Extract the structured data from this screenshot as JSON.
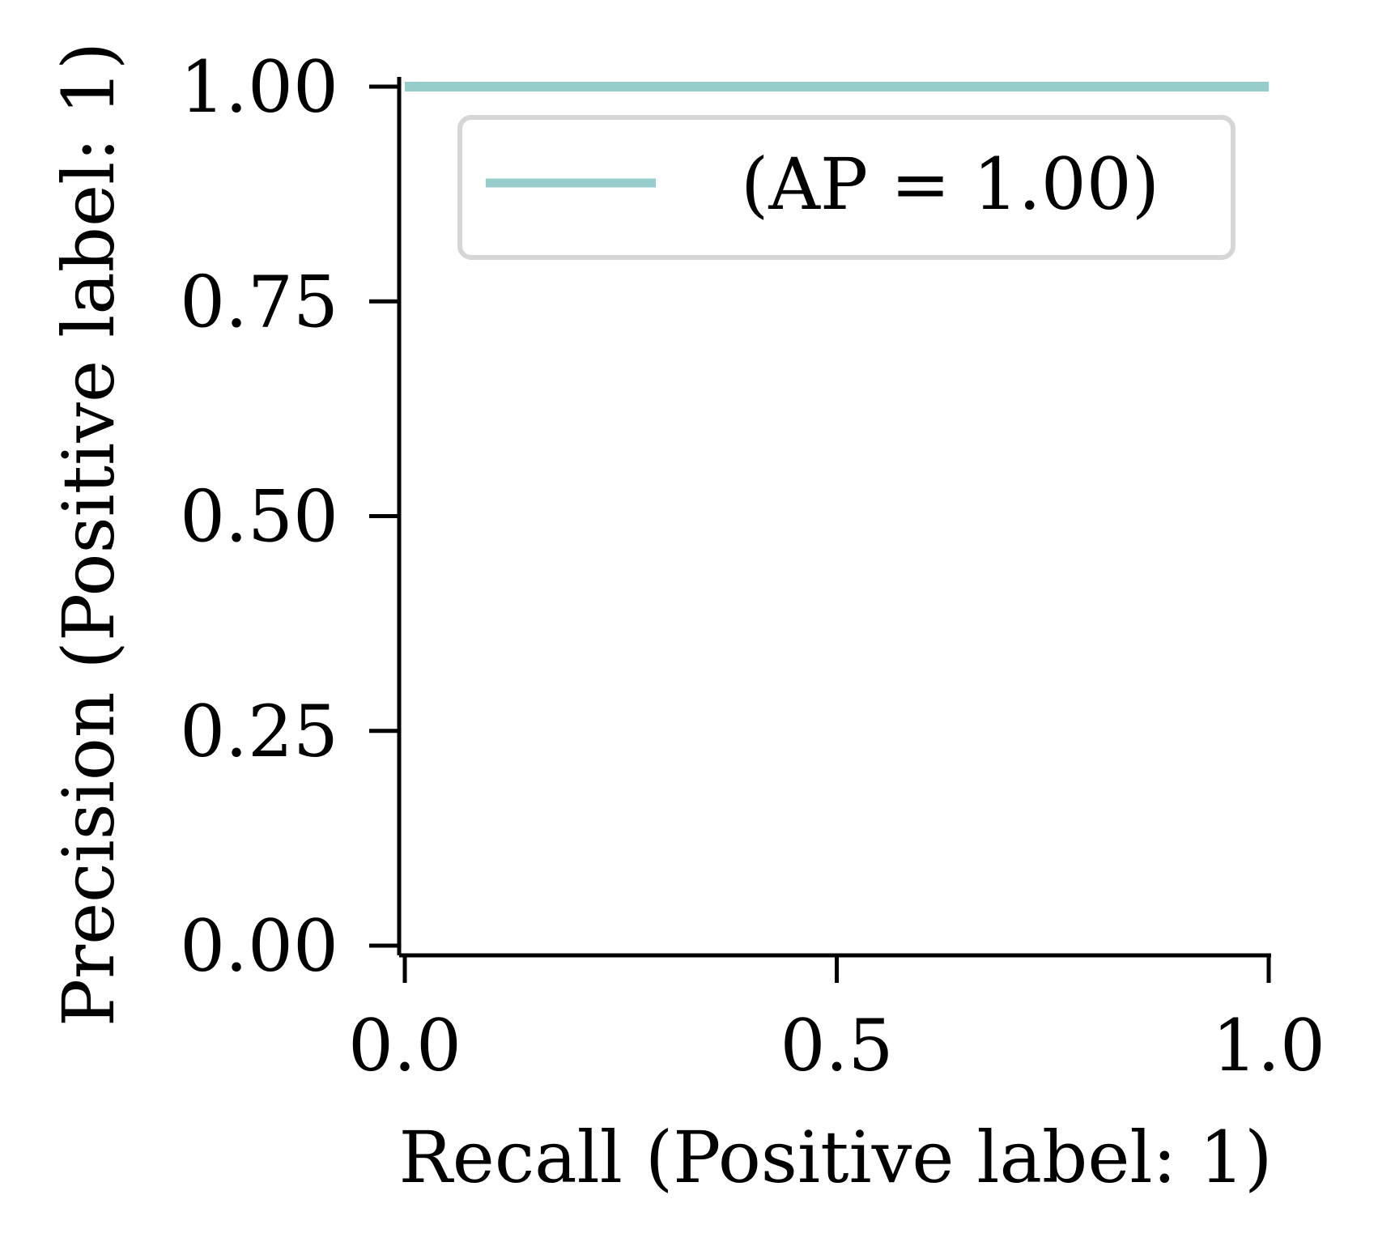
{
  "chart_data": {
    "type": "line",
    "xlabel": "Recall (Positive label: 1)",
    "ylabel": "Precision (Positive label: 1)",
    "xlim": [
      0.0,
      1.0
    ],
    "ylim": [
      0.0,
      1.0
    ],
    "xticks": [
      0.0,
      0.5,
      1.0
    ],
    "xtick_labels": [
      "0.0",
      "0.5",
      "1.0"
    ],
    "yticks": [
      0.0,
      0.25,
      0.5,
      0.75,
      1.0
    ],
    "ytick_labels": [
      "0.00",
      "0.25",
      "0.50",
      "0.75",
      "1.00"
    ],
    "grid": false,
    "legend_position": "top-right",
    "series": [
      {
        "name": "(AP = 1.00)",
        "color": "#96ccca",
        "x": [
          0.0,
          1.0
        ],
        "y": [
          1.0,
          1.0
        ]
      }
    ]
  }
}
